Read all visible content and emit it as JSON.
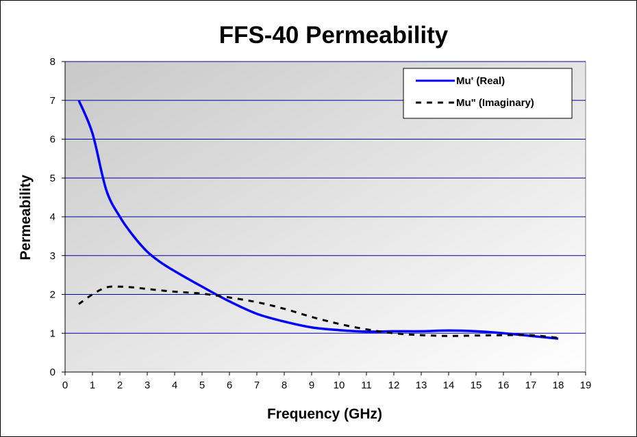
{
  "chart_data": {
    "type": "line",
    "title": "FFS-40 Permeability",
    "xlabel": "Frequency (GHz)",
    "ylabel": "Permeability",
    "xlim": [
      0,
      19
    ],
    "ylim": [
      0,
      8
    ],
    "xticks": [
      0,
      1,
      2,
      3,
      4,
      5,
      6,
      7,
      8,
      9,
      10,
      11,
      12,
      13,
      14,
      15,
      16,
      17,
      18,
      19
    ],
    "yticks": [
      0,
      1,
      2,
      3,
      4,
      5,
      6,
      7,
      8
    ],
    "grid": "horizontal",
    "legend_position": "top-right",
    "series": [
      {
        "name": "Mu' (Real)",
        "color": "#0000ff",
        "style": "solid",
        "x": [
          0.5,
          1,
          1.5,
          2,
          2.5,
          3,
          3.5,
          4,
          5,
          6,
          7,
          8,
          9,
          10,
          11,
          12,
          13,
          14,
          15,
          16,
          17,
          18
        ],
        "y": [
          7.0,
          6.15,
          4.7,
          4.0,
          3.5,
          3.1,
          2.82,
          2.6,
          2.2,
          1.82,
          1.5,
          1.3,
          1.15,
          1.08,
          1.04,
          1.05,
          1.05,
          1.07,
          1.05,
          1.0,
          0.93,
          0.86
        ]
      },
      {
        "name": "Mu\" (Imaginary)",
        "color": "#000000",
        "style": "dashed",
        "x": [
          0.5,
          1,
          1.5,
          2,
          2.5,
          3,
          4,
          5,
          6,
          7,
          8,
          9,
          10,
          11,
          12,
          13,
          14,
          15,
          16,
          17,
          18
        ],
        "y": [
          1.75,
          2.0,
          2.18,
          2.2,
          2.18,
          2.14,
          2.07,
          2.02,
          1.92,
          1.8,
          1.63,
          1.42,
          1.24,
          1.1,
          1.0,
          0.95,
          0.93,
          0.94,
          0.95,
          0.95,
          0.88
        ]
      }
    ]
  }
}
